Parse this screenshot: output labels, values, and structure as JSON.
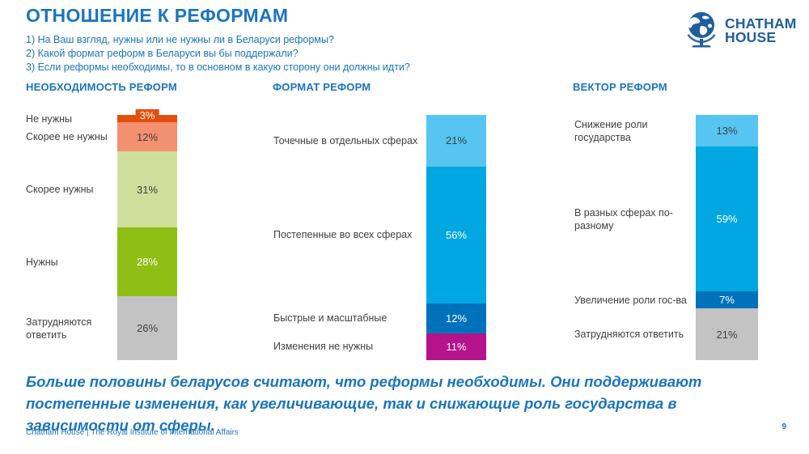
{
  "slide": {
    "title": "ОТНОШЕНИЕ К РЕФОРМАМ",
    "questions": [
      "1) На Ваш взгляд, нужны или не нужны ли в Беларуси реформы?",
      "2) Какой формат реформ в Беларуси вы бы поддержали?",
      "3) Если реформы необходимы, то в основном в какую сторону они должны идти?"
    ],
    "conclusion": "Больше половины беларусов считают, что реформы необходимы. Они поддерживают постепенные изменения, как увеличивающие, так и снижающие роль государства в зависимости от сферы.",
    "footer": "Chatham House  |  The Royal Institute of International Affairs",
    "page_number": "9",
    "logo": {
      "line1": "CHATHAM",
      "line2": "HOUSE"
    }
  },
  "colors": {
    "accent_blue": "#1b75bc",
    "logo_blue": "#1d5f9f",
    "label_gray": "#404040"
  },
  "chart_data": [
    {
      "type": "bar",
      "stacked": true,
      "orientation": "vertical",
      "title": "НЕОБХОДИМОСТЬ РЕФОРМ",
      "unit": "%",
      "categories": [
        "Не нужны",
        "Скорее не нужны",
        "Скорее нужны",
        "Нужны",
        "Затрудняются ответить"
      ],
      "values": [
        3,
        12,
        31,
        28,
        26
      ],
      "segment_colors": [
        "#e3500e",
        "#f29070",
        "#cfe09c",
        "#8fbe14",
        "#c3c3c3"
      ],
      "value_label_colors": [
        "#ffffff",
        "#404040",
        "#404040",
        "#ffffff",
        "#404040"
      ]
    },
    {
      "type": "bar",
      "stacked": true,
      "orientation": "vertical",
      "title": "ФОРМАТ РЕФОРМ",
      "unit": "%",
      "categories": [
        "Точечные в отдельных сферах",
        "Постепенные во всех сферах",
        "Быстрые и масштабные",
        "Изменения не нужны"
      ],
      "values": [
        21,
        56,
        12,
        11
      ],
      "segment_colors": [
        "#56c5f2",
        "#00a7e1",
        "#0071bb",
        "#b5138b"
      ],
      "value_label_colors": [
        "#404040",
        "#ffffff",
        "#ffffff",
        "#ffffff"
      ]
    },
    {
      "type": "bar",
      "stacked": true,
      "orientation": "vertical",
      "title": "ВЕКТОР РЕФОРМ",
      "unit": "%",
      "categories": [
        "Снижение роли государства",
        "В разных сферах по-разному",
        "Увеличение роли гос-ва",
        "Затрудняются ответить"
      ],
      "values": [
        13,
        59,
        7,
        21
      ],
      "segment_colors": [
        "#56c5f2",
        "#00a7e1",
        "#0071bb",
        "#c3c3c3"
      ],
      "value_label_colors": [
        "#404040",
        "#ffffff",
        "#ffffff",
        "#404040"
      ]
    }
  ]
}
